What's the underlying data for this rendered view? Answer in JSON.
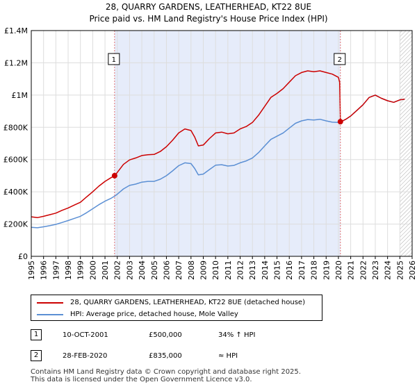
{
  "chart_data": {
    "type": "line",
    "title": "28, QUARRY GARDENS, LEATHERHEAD, KT22 8UE",
    "subtitle": "Price paid vs. HM Land Registry's House Price Index (HPI)",
    "xlim": [
      1995,
      2026
    ],
    "ylim": [
      0,
      1400000
    ],
    "yticks": [
      0,
      200000,
      400000,
      600000,
      800000,
      1000000,
      1200000,
      1400000
    ],
    "ytick_labels": [
      "£0",
      "£200K",
      "£400K",
      "£600K",
      "£800K",
      "£1M",
      "£1.2M",
      "£1.4M"
    ],
    "xticks": [
      1995,
      1996,
      1997,
      1998,
      1999,
      2000,
      2001,
      2002,
      2003,
      2004,
      2005,
      2006,
      2007,
      2008,
      2009,
      2010,
      2011,
      2012,
      2013,
      2014,
      2015,
      2016,
      2017,
      2018,
      2019,
      2020,
      2021,
      2022,
      2023,
      2024,
      2025,
      2026
    ],
    "xtick_labels": [
      "1995",
      "1996",
      "1997",
      "1998",
      "1999",
      "2000",
      "2001",
      "2002",
      "2003",
      "2004",
      "2005",
      "2006",
      "2007",
      "2008",
      "2009",
      "2010",
      "2011",
      "2012",
      "2013",
      "2014",
      "2015",
      "2016",
      "2017",
      "2018",
      "2019",
      "2020",
      "2021",
      "2022",
      "2023",
      "2024",
      "2025",
      "2026"
    ],
    "shaded_span": [
      2001.78,
      2020.16
    ],
    "hatched_from": 2025.0,
    "colors": {
      "property": "#cc0000",
      "hpi": "#5b8fd4",
      "shade": "#e6ecfa",
      "marker_line": "#e07070"
    },
    "series": [
      {
        "name": "28, QUARRY GARDENS, LEATHERHEAD, KT22 8UE (detached house)",
        "color": "#cc0000",
        "points": [
          [
            1995.0,
            245000
          ],
          [
            1995.5,
            240000
          ],
          [
            1996.0,
            248000
          ],
          [
            1996.5,
            258000
          ],
          [
            1997.0,
            268000
          ],
          [
            1997.5,
            285000
          ],
          [
            1998.0,
            300000
          ],
          [
            1998.5,
            318000
          ],
          [
            1999.0,
            335000
          ],
          [
            1999.5,
            368000
          ],
          [
            2000.0,
            400000
          ],
          [
            2000.5,
            435000
          ],
          [
            2001.0,
            465000
          ],
          [
            2001.5,
            488000
          ],
          [
            2001.78,
            500000
          ],
          [
            2002.0,
            520000
          ],
          [
            2002.5,
            570000
          ],
          [
            2003.0,
            598000
          ],
          [
            2003.5,
            610000
          ],
          [
            2004.0,
            625000
          ],
          [
            2004.5,
            630000
          ],
          [
            2005.0,
            632000
          ],
          [
            2005.5,
            650000
          ],
          [
            2006.0,
            680000
          ],
          [
            2006.5,
            720000
          ],
          [
            2007.0,
            765000
          ],
          [
            2007.5,
            790000
          ],
          [
            2008.0,
            780000
          ],
          [
            2008.3,
            740000
          ],
          [
            2008.6,
            685000
          ],
          [
            2009.0,
            690000
          ],
          [
            2009.5,
            730000
          ],
          [
            2010.0,
            765000
          ],
          [
            2010.5,
            770000
          ],
          [
            2011.0,
            760000
          ],
          [
            2011.5,
            765000
          ],
          [
            2012.0,
            790000
          ],
          [
            2012.5,
            805000
          ],
          [
            2013.0,
            830000
          ],
          [
            2013.5,
            875000
          ],
          [
            2014.0,
            930000
          ],
          [
            2014.5,
            985000
          ],
          [
            2015.0,
            1010000
          ],
          [
            2015.5,
            1040000
          ],
          [
            2016.0,
            1080000
          ],
          [
            2016.5,
            1120000
          ],
          [
            2017.0,
            1140000
          ],
          [
            2017.5,
            1150000
          ],
          [
            2018.0,
            1145000
          ],
          [
            2018.5,
            1150000
          ],
          [
            2019.0,
            1140000
          ],
          [
            2019.5,
            1130000
          ],
          [
            2020.0,
            1110000
          ],
          [
            2020.1,
            1080000
          ],
          [
            2020.16,
            835000
          ],
          [
            2020.3,
            838000
          ],
          [
            2020.6,
            850000
          ],
          [
            2021.0,
            870000
          ],
          [
            2021.5,
            905000
          ],
          [
            2022.0,
            940000
          ],
          [
            2022.5,
            985000
          ],
          [
            2023.0,
            1000000
          ],
          [
            2023.5,
            980000
          ],
          [
            2024.0,
            965000
          ],
          [
            2024.5,
            955000
          ],
          [
            2025.0,
            970000
          ],
          [
            2025.4,
            975000
          ]
        ]
      },
      {
        "name": "HPI: Average price, detached house, Mole Valley",
        "color": "#5b8fd4",
        "points": [
          [
            1995.0,
            180000
          ],
          [
            1995.5,
            177000
          ],
          [
            1996.0,
            183000
          ],
          [
            1996.5,
            190000
          ],
          [
            1997.0,
            198000
          ],
          [
            1997.5,
            210000
          ],
          [
            1998.0,
            222000
          ],
          [
            1998.5,
            235000
          ],
          [
            1999.0,
            248000
          ],
          [
            1999.5,
            270000
          ],
          [
            2000.0,
            295000
          ],
          [
            2000.5,
            320000
          ],
          [
            2001.0,
            342000
          ],
          [
            2001.5,
            360000
          ],
          [
            2001.78,
            373000
          ],
          [
            2002.0,
            385000
          ],
          [
            2002.5,
            418000
          ],
          [
            2003.0,
            440000
          ],
          [
            2003.5,
            448000
          ],
          [
            2004.0,
            460000
          ],
          [
            2004.5,
            465000
          ],
          [
            2005.0,
            465000
          ],
          [
            2005.5,
            478000
          ],
          [
            2006.0,
            500000
          ],
          [
            2006.5,
            530000
          ],
          [
            2007.0,
            562000
          ],
          [
            2007.5,
            580000
          ],
          [
            2008.0,
            575000
          ],
          [
            2008.3,
            545000
          ],
          [
            2008.6,
            505000
          ],
          [
            2009.0,
            510000
          ],
          [
            2009.5,
            538000
          ],
          [
            2010.0,
            565000
          ],
          [
            2010.5,
            568000
          ],
          [
            2011.0,
            560000
          ],
          [
            2011.5,
            564000
          ],
          [
            2012.0,
            580000
          ],
          [
            2012.5,
            592000
          ],
          [
            2013.0,
            610000
          ],
          [
            2013.5,
            643000
          ],
          [
            2014.0,
            685000
          ],
          [
            2014.5,
            725000
          ],
          [
            2015.0,
            745000
          ],
          [
            2015.5,
            765000
          ],
          [
            2016.0,
            795000
          ],
          [
            2016.5,
            825000
          ],
          [
            2017.0,
            840000
          ],
          [
            2017.5,
            848000
          ],
          [
            2018.0,
            845000
          ],
          [
            2018.5,
            850000
          ],
          [
            2019.0,
            840000
          ],
          [
            2019.5,
            832000
          ],
          [
            2020.0,
            830000
          ],
          [
            2020.16,
            835000
          ],
          [
            2020.3,
            838000
          ],
          [
            2020.6,
            850000
          ],
          [
            2021.0,
            870000
          ],
          [
            2021.5,
            905000
          ],
          [
            2022.0,
            940000
          ],
          [
            2022.5,
            985000
          ],
          [
            2023.0,
            1000000
          ],
          [
            2023.5,
            980000
          ],
          [
            2024.0,
            965000
          ],
          [
            2024.5,
            955000
          ],
          [
            2025.0,
            970000
          ],
          [
            2025.4,
            975000
          ]
        ]
      }
    ],
    "annotations": [
      {
        "label": "1",
        "x": 2001.78,
        "value": 500000
      },
      {
        "label": "2",
        "x": 2020.16,
        "value": 835000
      }
    ]
  },
  "legend": {
    "property_label": "28, QUARRY GARDENS, LEATHERHEAD, KT22 8UE (detached house)",
    "hpi_label": "HPI: Average price, detached house, Mole Valley"
  },
  "transactions": [
    {
      "num": "1",
      "date": "10-OCT-2001",
      "price": "£500,000",
      "hpi": "34% ↑ HPI"
    },
    {
      "num": "2",
      "date": "28-FEB-2020",
      "price": "£835,000",
      "hpi": "≈ HPI"
    }
  ],
  "footer": {
    "line1": "Contains HM Land Registry data © Crown copyright and database right 2025.",
    "line2": "This data is licensed under the Open Government Licence v3.0."
  }
}
